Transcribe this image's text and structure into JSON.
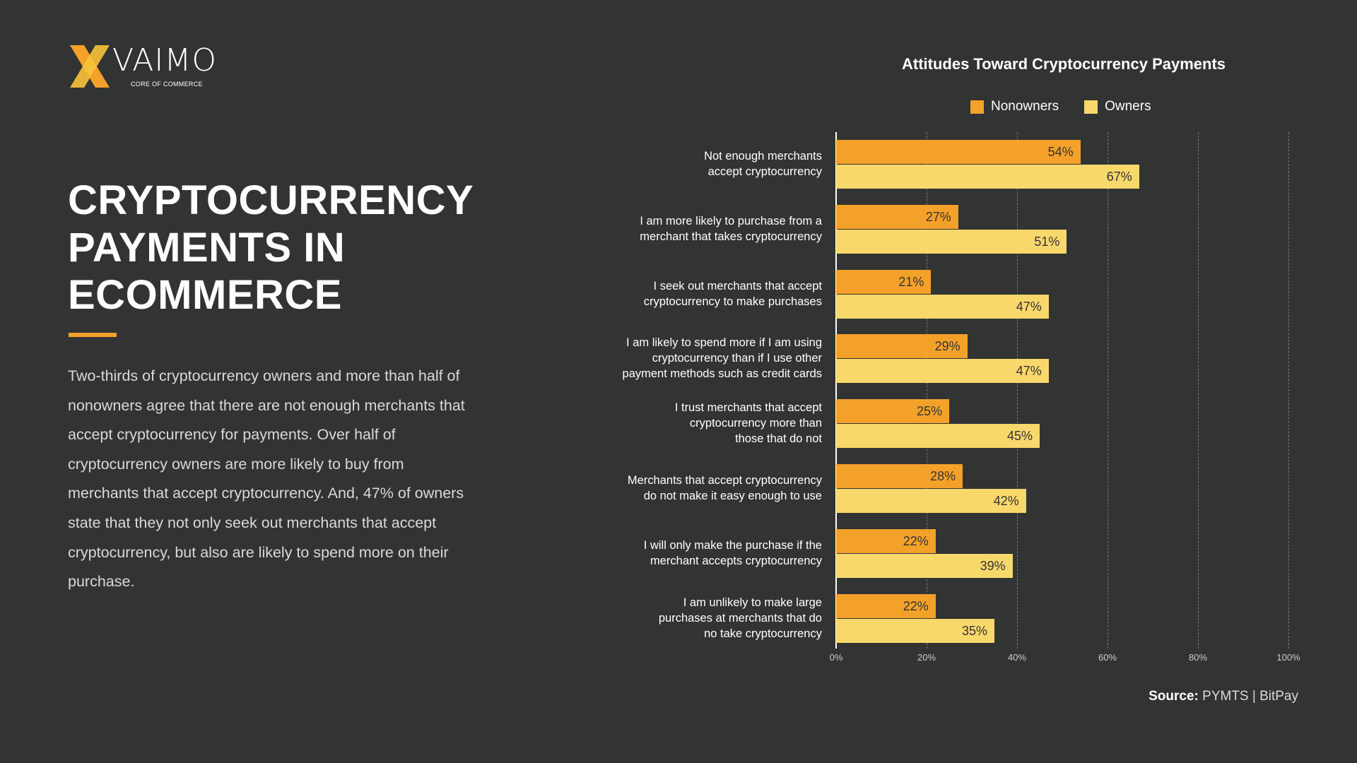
{
  "logo": {
    "word": "VAIMO",
    "tagline": "CORE OF COMMERCE"
  },
  "headline": [
    "CRYPTOCURRENCY",
    "PAYMENTS IN",
    "ECOMMERCE"
  ],
  "body_text": "Two-thirds of cryptocurrency owners and more than half of nonowners agree that there are not enough merchants that accept cryptocurrency for payments. Over half of cryptocurrency owners are more likely to buy from merchants that accept cryptocurrency. And, 47% of owners state that they not only seek out merchants that accept cryptocurrency, but also are likely to spend more on their purchase.",
  "source": {
    "label": "Source:",
    "value": "PYMTS | BitPay"
  },
  "colors": {
    "background": "#323333",
    "nonowners": "#F4A12A",
    "owners": "#F8D86B"
  },
  "chart_data": {
    "type": "bar",
    "orientation": "horizontal",
    "title": "Attitudes Toward Cryptocurrency Payments",
    "legend_position": "top",
    "grid": true,
    "xlim": [
      0,
      100
    ],
    "x_ticks": [
      "0%",
      "20%",
      "40%",
      "60%",
      "80%",
      "100%"
    ],
    "categories": [
      [
        "Not enough merchants",
        "accept cryptocurrency"
      ],
      [
        "I am more likely to purchase from a",
        "merchant that takes cryptocurrency"
      ],
      [
        "I seek out merchants that accept",
        "cryptocurrency to make purchases"
      ],
      [
        "I am likely to spend more if I am using",
        "cryptocurrency than if I use other",
        "payment methods such as credit cards"
      ],
      [
        "I trust merchants that accept",
        "cryptocurrency more than",
        "those that do not"
      ],
      [
        "Merchants that accept cryptocurrency",
        "do not make it easy enough to use"
      ],
      [
        "I will only make the purchase if the",
        "merchant accepts cryptocurrency"
      ],
      [
        "I am unlikely to make large",
        "purchases at merchants that do",
        "no take cryptocurrency"
      ]
    ],
    "series": [
      {
        "name": "Nonowners",
        "color": "#F4A12A",
        "values": [
          54,
          27,
          21,
          29,
          25,
          28,
          22,
          22
        ]
      },
      {
        "name": "Owners",
        "color": "#F8D86B",
        "values": [
          67,
          51,
          47,
          47,
          45,
          42,
          39,
          35
        ]
      }
    ]
  }
}
